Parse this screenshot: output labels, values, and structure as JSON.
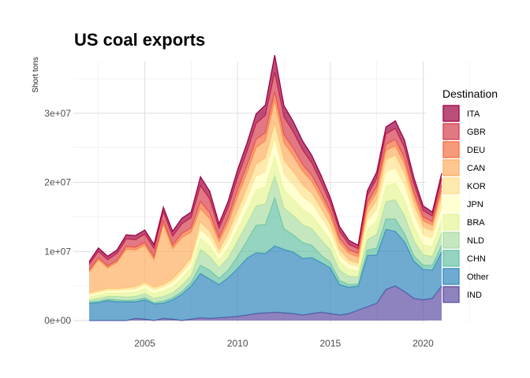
{
  "chart_data": {
    "type": "area",
    "stacked": true,
    "title": "US coal exports",
    "ylabel": "Short tons",
    "xlabel": "",
    "xlim": [
      2002,
      2021
    ],
    "ylim": [
      0,
      37500000
    ],
    "x_ticks": [
      2005,
      2010,
      2015,
      2020
    ],
    "y_ticks": [
      0,
      10000000,
      20000000,
      30000000
    ],
    "y_tick_labels": [
      "0e+00",
      "1e+07",
      "2e+07",
      "3e+07"
    ],
    "grid": true,
    "legend_title": "Destination",
    "legend_position": "right",
    "x": [
      2002,
      2002.5,
      2003,
      2003.5,
      2004,
      2004.5,
      2005,
      2005.5,
      2006,
      2006.5,
      2007,
      2007.5,
      2008,
      2008.5,
      2009,
      2009.5,
      2010,
      2010.5,
      2011,
      2011.5,
      2012,
      2012.5,
      2013,
      2013.5,
      2014,
      2014.5,
      2015,
      2015.5,
      2016,
      2016.5,
      2017,
      2017.5,
      2018,
      2018.5,
      2019,
      2019.5,
      2020,
      2020.5,
      2021
    ],
    "series": [
      {
        "name": "IND",
        "color": "#5e4fa2",
        "values": [
          0,
          0,
          0,
          0,
          0,
          300000,
          200000,
          0,
          300000,
          200000,
          0,
          200000,
          400000,
          300000,
          400000,
          500000,
          600000,
          800000,
          1000000,
          1100000,
          1200000,
          1100000,
          1000000,
          800000,
          1000000,
          1200000,
          1000000,
          800000,
          1000000,
          1500000,
          2000000,
          2500000,
          4500000,
          5000000,
          4200000,
          3200000,
          3000000,
          3200000,
          5000000
        ]
      },
      {
        "name": "Other",
        "color": "#3288bd",
        "values": [
          2500000,
          2600000,
          2900000,
          2700000,
          2700000,
          2400000,
          2800000,
          2400000,
          2200000,
          2800000,
          3800000,
          4800000,
          6400000,
          5700000,
          4800000,
          5700000,
          6900000,
          8200000,
          8800000,
          8600000,
          9600000,
          9200000,
          8900000,
          8200000,
          8100000,
          7200000,
          6600000,
          4400000,
          3800000,
          3500000,
          7400000,
          7000000,
          8700000,
          7900000,
          7200000,
          5400000,
          4400000,
          4100000,
          4900000
        ]
      },
      {
        "name": "CHN",
        "color": "#66c2a5",
        "values": [
          200000,
          200000,
          200000,
          300000,
          200000,
          300000,
          300000,
          200000,
          300000,
          300000,
          400000,
          500000,
          1200000,
          1300000,
          900000,
          1100000,
          1800000,
          2500000,
          4000000,
          4200000,
          7000000,
          3000000,
          2500000,
          2300000,
          1800000,
          1100000,
          800000,
          600000,
          400000,
          300000,
          800000,
          1000000,
          1500000,
          1800000,
          1200000,
          800000,
          600000,
          700000,
          1000000
        ]
      },
      {
        "name": "NLD",
        "color": "#abdda4",
        "values": [
          300000,
          400000,
          400000,
          500000,
          500000,
          500000,
          600000,
          600000,
          700000,
          700000,
          900000,
          1000000,
          2300000,
          2000000,
          1500000,
          1800000,
          2200000,
          2500000,
          2800000,
          3000000,
          3200000,
          3000000,
          2800000,
          2600000,
          2400000,
          2200000,
          1800000,
          1500000,
          1200000,
          1000000,
          1500000,
          2000000,
          2500000,
          2800000,
          2600000,
          2200000,
          1500000,
          1300000,
          1800000
        ]
      },
      {
        "name": "BRA",
        "color": "#e6f598",
        "values": [
          400000,
          500000,
          500000,
          500000,
          600000,
          600000,
          700000,
          700000,
          800000,
          900000,
          1000000,
          1100000,
          1600000,
          1500000,
          1100000,
          1400000,
          1700000,
          2000000,
          2300000,
          2500000,
          2800000,
          2600000,
          2400000,
          2200000,
          2000000,
          1800000,
          1500000,
          1200000,
          1000000,
          900000,
          1500000,
          1900000,
          2300000,
          2400000,
          2300000,
          2000000,
          1500000,
          1400000,
          1900000
        ]
      },
      {
        "name": "JPN",
        "color": "#ffffbf",
        "values": [
          300000,
          300000,
          300000,
          300000,
          400000,
          400000,
          500000,
          500000,
          500000,
          600000,
          700000,
          800000,
          1200000,
          1100000,
          800000,
          1100000,
          1400000,
          1600000,
          1900000,
          2100000,
          2400000,
          2200000,
          2000000,
          1800000,
          1600000,
          1400000,
          1100000,
          900000,
          700000,
          600000,
          1200000,
          1600000,
          2000000,
          2100000,
          2000000,
          1700000,
          1300000,
          1200000,
          1700000
        ]
      },
      {
        "name": "KOR",
        "color": "#fee08b",
        "values": [
          300000,
          300000,
          300000,
          300000,
          300000,
          400000,
          400000,
          400000,
          400000,
          500000,
          600000,
          700000,
          1100000,
          1000000,
          700000,
          1000000,
          1300000,
          1500000,
          1800000,
          2000000,
          2300000,
          2100000,
          1900000,
          1700000,
          1500000,
          1300000,
          1000000,
          800000,
          600000,
          500000,
          1000000,
          1400000,
          1800000,
          1900000,
          1800000,
          1500000,
          1200000,
          1100000,
          1500000
        ]
      },
      {
        "name": "CAN",
        "color": "#fdae61",
        "values": [
          3000000,
          4500000,
          3000000,
          3800000,
          5600000,
          5300000,
          5400000,
          4000000,
          8700000,
          4400000,
          4600000,
          3700000,
          2000000,
          1800000,
          1200000,
          1500000,
          2000000,
          2200000,
          2400000,
          2500000,
          3300000,
          2500000,
          2300000,
          2000000,
          1700000,
          1500000,
          1300000,
          1100000,
          1000000,
          900000,
          1000000,
          1200000,
          1300000,
          1400000,
          1300000,
          1100000,
          900000,
          800000,
          1000000
        ]
      },
      {
        "name": "DEU",
        "color": "#f46d43",
        "values": [
          300000,
          300000,
          300000,
          300000,
          400000,
          400000,
          400000,
          400000,
          500000,
          500000,
          600000,
          600000,
          1000000,
          900000,
          600000,
          800000,
          1000000,
          1100000,
          1200000,
          1200000,
          1300000,
          1200000,
          1100000,
          1000000,
          900000,
          800000,
          700000,
          600000,
          500000,
          500000,
          700000,
          800000,
          900000,
          900000,
          900000,
          700000,
          600000,
          500000,
          700000
        ]
      },
      {
        "name": "GBR",
        "color": "#d53e4f",
        "values": [
          800000,
          900000,
          900000,
          1000000,
          1100000,
          1100000,
          1200000,
          1200000,
          1300000,
          1300000,
          1400000,
          1500000,
          2300000,
          2000000,
          1300000,
          1500000,
          1800000,
          2000000,
          2300000,
          2500000,
          2800000,
          2600000,
          2400000,
          2100000,
          1800000,
          1500000,
          1200000,
          1000000,
          800000,
          700000,
          1000000,
          1200000,
          1500000,
          1600000,
          1500000,
          1200000,
          900000,
          800000,
          1000000
        ]
      },
      {
        "name": "ITA",
        "color": "#9e0142",
        "values": [
          400000,
          500000,
          500000,
          500000,
          600000,
          600000,
          600000,
          600000,
          700000,
          700000,
          800000,
          800000,
          1300000,
          1100000,
          700000,
          900000,
          1100000,
          1200000,
          1400000,
          1500000,
          2500000,
          1600000,
          1500000,
          1300000,
          1100000,
          1000000,
          800000,
          700000,
          600000,
          500000,
          700000,
          900000,
          1000000,
          1100000,
          1100000,
          900000,
          700000,
          600000,
          800000
        ]
      }
    ]
  }
}
